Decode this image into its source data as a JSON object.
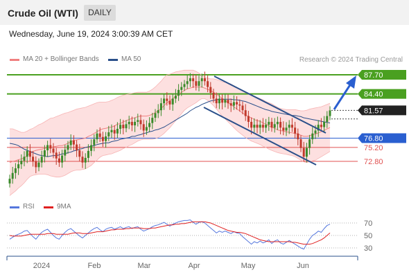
{
  "header": {
    "title": "Crude Oil (WTI)",
    "timeframe": "DAILY",
    "datetime": "Wednesday, June 19, 2024 3:00:39 AM CET"
  },
  "legend": {
    "ma20": "MA 20 + Bollinger Bands",
    "ma50": "MA 50",
    "rsi": "RSI",
    "ma9": "9MA",
    "credit": "Research © 2024 Trading Central"
  },
  "colors": {
    "bullish": "#3a8a2a",
    "bearish": "#c0392b",
    "ma20": "#f08080",
    "ma50": "#2a4f8a",
    "bollinger_fill": "#fde0e0",
    "resistance": "#4aa020",
    "pivot": "#2a5fd0",
    "support": "#e05050",
    "channel": "#2a4f8a",
    "rsi": "#5577dd",
    "rsi_ma": "#e02020",
    "current": "#222222"
  },
  "chart_data": [
    {
      "type": "candlestick",
      "title": "Crude Oil (WTI)",
      "timeframe": "DAILY",
      "x_tick_labels": [
        "2024",
        "Feb",
        "Mar",
        "Apr",
        "May",
        "Jun"
      ],
      "y_axis": {
        "levels": [
          {
            "value": 87.7,
            "label": "87.70",
            "kind": "resistance"
          },
          {
            "value": 84.4,
            "label": "84.40",
            "kind": "resistance"
          },
          {
            "value": 81.57,
            "label": "81.57",
            "kind": "current"
          },
          {
            "value": 76.8,
            "label": "76.80",
            "kind": "pivot"
          },
          {
            "value": 75.2,
            "label": "75.20",
            "kind": "support"
          },
          {
            "value": 72.8,
            "label": "72.80",
            "kind": "support"
          }
        ]
      },
      "closes": [
        69.8,
        70.8,
        71.6,
        72.3,
        72.9,
        73.6,
        74.6,
        73.6,
        72.8,
        71.8,
        72.6,
        73.6,
        74.7,
        75.6,
        75.0,
        74.3,
        73.3,
        72.6,
        73.8,
        74.8,
        75.6,
        76.4,
        75.7,
        74.7,
        73.6,
        72.6,
        73.4,
        74.6,
        75.6,
        76.6,
        77.6,
        77.0,
        76.3,
        77.1,
        77.8,
        78.2,
        77.6,
        78.4,
        79.1,
        78.5,
        79.2,
        79.6,
        79.0,
        79.6,
        79.9,
        79.2,
        78.1,
        78.7,
        79.4,
        80.3,
        81.1,
        81.6,
        82.8,
        83.6,
        83.2,
        82.6,
        83.6,
        84.1,
        85.1,
        85.6,
        86.1,
        86.6,
        87.1,
        86.6,
        85.8,
        86.6,
        87.1,
        86.6,
        85.6,
        84.6,
        83.6,
        82.8,
        83.6,
        82.9,
        83.4,
        82.8,
        82.4,
        83.0,
        82.6,
        82.4,
        81.6,
        80.6,
        79.6,
        78.6,
        79.1,
        78.6,
        79.1,
        78.6,
        79.1,
        79.6,
        78.6,
        79.2,
        79.6,
        78.6,
        78.1,
        78.6,
        79.1,
        78.6,
        77.6,
        76.6,
        75.1,
        73.6,
        75.1,
        76.6,
        77.6,
        78.1,
        79.1,
        78.7,
        79.6,
        80.6,
        81.57
      ],
      "bollinger_upper": [
        78.4,
        78.4,
        78.2,
        78.0,
        77.8,
        77.8,
        78.0,
        78.3,
        78.5,
        78.8,
        79.1,
        79.3,
        79.6,
        79.9,
        80.2,
        80.3,
        80.5,
        80.7,
        80.9,
        81.1,
        81.2,
        81.4,
        81.6,
        81.8,
        81.9,
        82.0,
        82.1,
        82.3,
        82.5,
        82.7,
        82.9,
        83.0,
        83.0,
        83.0,
        83.1,
        83.3,
        83.5,
        83.8,
        84.0,
        84.2,
        84.3,
        84.4,
        84.5,
        84.6,
        84.7,
        84.7,
        84.7,
        84.7,
        84.9,
        85.2,
        85.6,
        86.1,
        86.6,
        87.2,
        87.7,
        87.8,
        88.0,
        88.2,
        88.3,
        88.4,
        88.5,
        88.5,
        88.5,
        88.5,
        88.3,
        88.0,
        87.6,
        87.3,
        87.1,
        87.0,
        87.0,
        86.9,
        86.7,
        86.5,
        86.4,
        86.3,
        86.1,
        85.8,
        85.5,
        85.2,
        84.9,
        84.6,
        84.4,
        84.2,
        84.0,
        83.8,
        83.6,
        83.4,
        83.1,
        82.9,
        82.7,
        82.4,
        82.1,
        81.9,
        81.8,
        81.7,
        81.7,
        81.7,
        81.7,
        81.6,
        81.5,
        81.5,
        81.6,
        81.8,
        81.9,
        82.0,
        82.1,
        82.2,
        82.4,
        82.6,
        82.8
      ],
      "bollinger_lower": [
        66.9,
        67.3,
        67.7,
        68.2,
        68.6,
        69.1,
        69.7,
        70.2,
        70.4,
        70.5,
        70.6,
        70.6,
        70.6,
        70.5,
        70.3,
        70.2,
        70.1,
        70.1,
        70.2,
        70.4,
        70.7,
        71.0,
        71.2,
        71.3,
        71.3,
        71.4,
        71.5,
        71.8,
        72.1,
        72.6,
        73.0,
        73.5,
        73.8,
        73.9,
        74.0,
        74.1,
        74.3,
        74.5,
        74.7,
        75.0,
        75.2,
        75.5,
        75.7,
        76.0,
        76.3,
        76.5,
        76.6,
        76.6,
        76.6,
        76.6,
        76.7,
        76.9,
        77.2,
        77.6,
        78.1,
        78.6,
        79.2,
        79.8,
        80.4,
        81.0,
        81.6,
        82.0,
        82.3,
        82.6,
        82.9,
        83.3,
        83.6,
        83.6,
        83.3,
        82.9,
        82.4,
        81.8,
        81.2,
        80.6,
        80.1,
        79.6,
        79.1,
        78.6,
        78.1,
        77.7,
        77.3,
        76.9,
        76.6,
        76.3,
        76.1,
        75.9,
        75.7,
        75.4,
        75.2,
        74.9,
        74.7,
        74.5,
        74.3,
        74.2,
        74.1,
        74.0,
        73.9,
        73.8,
        73.6,
        73.3,
        73.0,
        72.7,
        72.6,
        72.7,
        72.9,
        73.0,
        73.3,
        73.6,
        73.9,
        74.2,
        74.5
      ],
      "ma20": [
        72.6,
        72.8,
        72.9,
        73.1,
        73.2,
        73.4,
        73.8,
        74.2,
        74.5,
        74.7,
        74.8,
        74.9,
        75.0,
        75.2,
        75.2,
        75.3,
        75.4,
        75.5,
        75.5,
        75.7,
        75.9,
        76.2,
        76.4,
        76.5,
        76.6,
        76.7,
        76.8,
        77.1,
        77.3,
        77.6,
        77.9,
        78.2,
        78.4,
        78.5,
        78.6,
        78.7,
        78.9,
        79.2,
        79.3,
        79.6,
        79.8,
        80.0,
        80.2,
        80.3,
        80.5,
        80.6,
        80.6,
        80.6,
        80.7,
        80.9,
        81.2,
        81.5,
        81.9,
        82.4,
        82.9,
        83.2,
        83.6,
        84.0,
        84.3,
        84.7,
        85.0,
        85.3,
        85.4,
        85.6,
        85.6,
        85.6,
        85.6,
        85.4,
        85.2,
        85.0,
        84.7,
        84.4,
        84.0,
        83.6,
        83.3,
        82.9,
        82.6,
        82.2,
        81.8,
        81.5,
        81.1,
        80.8,
        80.5,
        80.3,
        80.0,
        79.8,
        79.7,
        79.4,
        79.2,
        78.9,
        78.7,
        78.5,
        78.2,
        78.1,
        78.0,
        77.9,
        77.8,
        77.7,
        77.6,
        77.5,
        77.3,
        77.1,
        77.1,
        77.2,
        77.4,
        77.5,
        77.7,
        77.9,
        78.1,
        78.4,
        78.6
      ],
      "ma50": [
        75.9,
        75.8,
        75.7,
        75.5,
        75.2,
        74.9,
        74.7,
        74.5,
        74.3,
        74.1,
        73.9,
        73.8,
        73.7,
        73.6,
        73.7,
        73.8,
        73.8,
        73.9,
        74.1,
        74.1,
        74.3,
        74.4,
        74.6,
        74.7,
        74.9,
        75.0,
        75.2,
        75.3,
        75.4,
        75.5,
        75.7,
        75.8,
        75.9,
        76.0,
        76.0,
        76.2,
        76.3,
        76.4,
        76.6,
        76.7,
        76.8,
        76.9,
        77.1,
        77.1,
        77.3,
        77.4,
        77.6,
        77.7,
        77.9,
        78.0,
        78.2,
        78.3,
        78.5,
        78.7,
        79.0,
        79.3,
        79.6,
        79.9,
        80.2,
        80.5,
        80.8,
        81.1,
        81.5,
        81.8,
        82.1,
        82.3,
        82.6,
        82.8,
        83.0,
        83.2,
        83.3,
        83.4,
        83.5,
        83.5,
        83.5,
        83.5,
        83.5,
        83.4,
        83.4,
        83.3,
        83.2,
        83.1,
        82.9,
        82.7,
        82.5,
        82.3,
        82.1,
        81.9,
        81.7,
        81.6,
        81.4,
        81.3,
        81.2,
        81.1,
        81.0,
        80.9,
        80.8,
        80.7,
        80.7,
        80.6,
        80.5,
        80.3,
        80.2,
        80.1,
        80.0,
        79.9,
        79.8,
        79.7,
        79.6,
        79.5,
        79.4
      ]
    },
    {
      "type": "line",
      "title": "RSI",
      "y_tick_labels": [
        "70",
        "50",
        "30"
      ],
      "series": [
        {
          "name": "RSI",
          "values": [
            44,
            47,
            50,
            52,
            54,
            57,
            58,
            53,
            48,
            44,
            50,
            55,
            58,
            60,
            55,
            50,
            46,
            44,
            50,
            55,
            59,
            61,
            57,
            53,
            49,
            46,
            50,
            54,
            58,
            61,
            63,
            59,
            56,
            60,
            62,
            63,
            60,
            62,
            64,
            61,
            63,
            64,
            61,
            63,
            64,
            60,
            57,
            59,
            61,
            64,
            66,
            67,
            69,
            71,
            68,
            65,
            68,
            70,
            72,
            73,
            74,
            74,
            75,
            71,
            68,
            71,
            72,
            70,
            66,
            62,
            58,
            54,
            57,
            55,
            57,
            55,
            53,
            56,
            54,
            53,
            48,
            44,
            40,
            36,
            40,
            38,
            41,
            38,
            40,
            43,
            37,
            41,
            43,
            38,
            36,
            39,
            42,
            39,
            36,
            33,
            30,
            28,
            36,
            44,
            50,
            53,
            57,
            55,
            61,
            66,
            68
          ]
        },
        {
          "name": "9MA",
          "values": [
            50,
            49,
            49,
            49,
            49,
            50,
            51,
            52,
            52,
            52,
            52,
            52,
            52,
            53,
            53,
            53,
            52,
            52,
            52,
            52,
            52,
            53,
            54,
            54,
            54,
            53,
            53,
            53,
            54,
            55,
            56,
            56,
            56,
            57,
            58,
            59,
            59,
            60,
            60,
            60,
            61,
            61,
            62,
            62,
            62,
            62,
            61,
            61,
            61,
            62,
            62,
            63,
            64,
            65,
            66,
            67,
            67,
            68,
            68,
            69,
            69,
            70,
            71,
            72,
            72,
            72,
            72,
            72,
            71,
            70,
            68,
            66,
            64,
            62,
            60,
            58,
            57,
            56,
            55,
            55,
            54,
            53,
            51,
            49,
            47,
            45,
            43,
            42,
            41,
            40,
            40,
            40,
            40,
            40,
            40,
            40,
            40,
            39,
            39,
            38,
            37,
            36,
            36,
            36,
            37,
            39,
            41,
            43,
            46,
            50,
            54
          ]
        }
      ]
    }
  ]
}
